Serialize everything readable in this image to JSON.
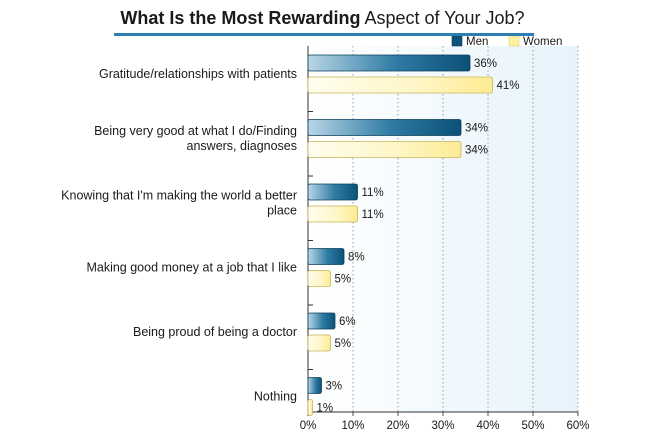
{
  "title": {
    "bold_part": "What Is the Most Rewarding",
    "regular_part": " Aspect of Your Job?"
  },
  "colors": {
    "men": "#0c5177",
    "women": "#fdf0a0",
    "plot_bg": "#eef7fc",
    "title_rule": "#2e7fb1"
  },
  "chart_data": {
    "type": "bar",
    "orientation": "horizontal",
    "title": "What Is the Most Rewarding Aspect of Your Job?",
    "categories": [
      [
        "Gratitude/relationships with patients"
      ],
      [
        "Being very good at what I do/Finding",
        "answers, diagnoses"
      ],
      [
        "Knowing that I'm making the world a better",
        "place"
      ],
      [
        "Making good money at a job that I like"
      ],
      [
        "Being proud of being a doctor"
      ],
      [
        "Nothing"
      ]
    ],
    "series": [
      {
        "name": "Men",
        "values": [
          36,
          34,
          11,
          8,
          6,
          3
        ],
        "labels": [
          "36%",
          "34%",
          "11%",
          "8%",
          "6%",
          "3%"
        ]
      },
      {
        "name": "Women",
        "values": [
          41,
          34,
          11,
          5,
          5,
          1
        ],
        "labels": [
          "41%",
          "34%",
          "11%",
          "5%",
          "5%",
          "1%"
        ]
      }
    ],
    "xlim": [
      0,
      60
    ],
    "xticks": [
      "0%",
      "10%",
      "20%",
      "30%",
      "40%",
      "50%",
      "60%"
    ],
    "grid": "vertical dotted",
    "legend": "top-right"
  }
}
